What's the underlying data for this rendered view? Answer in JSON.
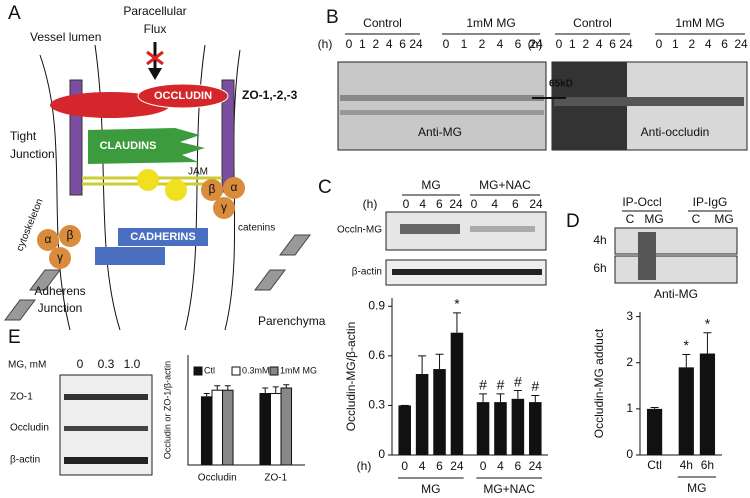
{
  "panel_a": {
    "letter": "A",
    "vessel_lumen": "Vessel lumen",
    "flux": [
      "Paracellular",
      "Flux"
    ],
    "occludin": "OCCLUDIN",
    "zo": "ZO-1,-2,-3",
    "tight_junction": [
      "Tight",
      "Junction"
    ],
    "claudins": "CLAUDINS",
    "jam": "JAM",
    "cytoskeleton": "cytoskeleton",
    "catenins_left": [
      "α",
      "β",
      "γ"
    ],
    "catenins_right": [
      "β",
      "α",
      "γ"
    ],
    "cadherins": "CADHERINS",
    "catenins": "catenins",
    "adherens_junction": [
      "Adherens",
      "Junction"
    ],
    "parenchyma": "Parenchyma"
  },
  "panel_b": {
    "letter": "B",
    "hours": "(h)",
    "groups": [
      {
        "label": "Control",
        "times": [
          "0",
          "1",
          "2",
          "4",
          "6",
          "24"
        ]
      },
      {
        "label": "1mM MG",
        "times": [
          "0",
          "1",
          "2",
          "4",
          "6",
          "24"
        ]
      },
      {
        "label": "Control",
        "times": [
          "0",
          "1",
          "2",
          "4",
          "6",
          "24"
        ]
      },
      {
        "label": "1mM MG",
        "times": [
          "0",
          "1",
          "2",
          "4",
          "6",
          "24"
        ]
      }
    ],
    "marker": "65kD",
    "blots": [
      "Anti-MG",
      "Anti-occludin"
    ]
  },
  "panel_c": {
    "letter": "C",
    "hours": "(h)",
    "groups": [
      {
        "label": "MG",
        "times": [
          "0",
          "4",
          "6",
          "24"
        ]
      },
      {
        "label": "MG+NAC",
        "times": [
          "0",
          "4",
          "6",
          "24"
        ]
      }
    ],
    "rows": [
      "Occln-MG",
      "β-actin"
    ]
  },
  "panel_d": {
    "letter": "D",
    "groups": [
      {
        "label": "IP-Occl",
        "lanes": [
          "C",
          "MG"
        ]
      },
      {
        "label": "IP-IgG",
        "lanes": [
          "C",
          "MG"
        ]
      }
    ],
    "rows": [
      "4h",
      "6h"
    ],
    "blot": "Anti-MG"
  },
  "panel_e": {
    "letter": "E",
    "dose_label": "MG, mM",
    "doses": [
      "0",
      "0.3",
      "1.0"
    ],
    "rows": [
      "ZO-1",
      "Occludin",
      "β-actin"
    ]
  },
  "chart_data": [
    {
      "type": "bar",
      "y_label": "Occludin-MG/β-actin",
      "x_label": "(h)",
      "color": "#111111",
      "ylim": [
        0,
        0.95
      ],
      "yticks": [
        0,
        0.3,
        0.6,
        0.9
      ],
      "groups": [
        {
          "label": "MG",
          "categories": [
            "0",
            "4",
            "6",
            "24"
          ],
          "values": [
            0.3,
            0.49,
            0.52,
            0.74
          ],
          "errors": [
            0,
            0.11,
            0.09,
            0.12
          ],
          "markers": [
            null,
            null,
            null,
            "*"
          ]
        },
        {
          "label": "MG+NAC",
          "categories": [
            "0",
            "4",
            "6",
            "24"
          ],
          "values": [
            0.32,
            0.32,
            0.34,
            0.32
          ],
          "errors": [
            0.05,
            0.05,
            0.05,
            0.04
          ],
          "markers": [
            "#",
            "#",
            "#",
            "#"
          ]
        }
      ]
    },
    {
      "type": "bar",
      "y_label": "Occludin-MG adduct",
      "color": "#111111",
      "ylim": [
        0,
        3.1
      ],
      "yticks": [
        0,
        1,
        2,
        3
      ],
      "groups": [
        {
          "categories": [
            "Ctl"
          ],
          "values": [
            1.0
          ],
          "errors": [
            0.03
          ],
          "markers": [
            null
          ]
        },
        {
          "label": "MG",
          "categories": [
            "4h",
            "6h"
          ],
          "values": [
            1.9,
            2.2
          ],
          "errors": [
            0.28,
            0.45
          ],
          "markers": [
            "*",
            "*"
          ]
        }
      ]
    },
    {
      "type": "grouped_bar",
      "y_label": "Occludin or ZO-1/β-actin",
      "ylim": [
        0,
        1
      ],
      "legend": "top",
      "categories": [
        "Occludin",
        "ZO-1"
      ],
      "series": [
        {
          "name": "Ctl",
          "color": "#111111",
          "values": [
            0.62,
            0.65
          ],
          "errors": [
            0.03,
            0.05
          ]
        },
        {
          "name": "0.3mM",
          "color": "#ffffff",
          "values": [
            0.68,
            0.65
          ],
          "errors": [
            0.04,
            0.06
          ]
        },
        {
          "name": "1mM MG",
          "color": "#888888",
          "values": [
            0.68,
            0.7
          ],
          "errors": [
            0.04,
            0.03
          ]
        }
      ]
    }
  ]
}
